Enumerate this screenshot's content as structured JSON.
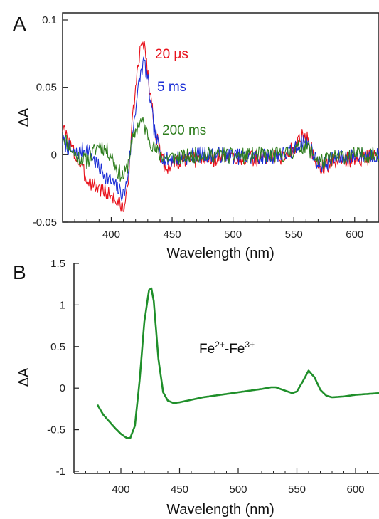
{
  "colors": {
    "red": "#e8101a",
    "blue": "#1c2fd6",
    "green_dark": "#2e7d1e",
    "green_b": "#1f8f2a",
    "axis": "#222222"
  },
  "panel_a": {
    "letter": "A"
  },
  "panel_b": {
    "letter": "B"
  },
  "chart_data": [
    {
      "type": "line",
      "xlabel": "Wavelength (nm)",
      "ylabel": "ΔA",
      "xlim": [
        360,
        620
      ],
      "ylim": [
        -0.05,
        0.1
      ],
      "xticks": [
        {
          "v": 400,
          "t": "400"
        },
        {
          "v": 450,
          "t": "450"
        },
        {
          "v": 500,
          "t": "500"
        },
        {
          "v": 550,
          "t": "550"
        },
        {
          "v": 600,
          "t": "600"
        }
      ],
      "yticks": [
        {
          "v": 0.1,
          "t": "0.1"
        },
        {
          "v": 0.05,
          "t": "0.05"
        },
        {
          "v": 0,
          "t": "0"
        },
        {
          "v": -0.05,
          "t": "-0.05"
        }
      ],
      "series": [
        {
          "name": "20 μs",
          "color": "#e8101a",
          "noise": 0.006,
          "seed": 3,
          "x": [
            360,
            370,
            380,
            390,
            400,
            405,
            410,
            413,
            416,
            420,
            424,
            427,
            430,
            435,
            440,
            445,
            450,
            460,
            470,
            480,
            490,
            500,
            510,
            520,
            530,
            540,
            548,
            554,
            558,
            562,
            566,
            570,
            575,
            580,
            590,
            600,
            610,
            620
          ],
          "y": [
            0.02,
            0.0,
            -0.018,
            -0.025,
            -0.03,
            -0.035,
            -0.04,
            -0.03,
            0.01,
            0.05,
            0.078,
            0.085,
            0.06,
            0.025,
            0.0,
            -0.01,
            -0.007,
            -0.004,
            -0.004,
            -0.004,
            -0.002,
            -0.002,
            -0.003,
            -0.003,
            -0.002,
            -0.002,
            0.003,
            0.01,
            0.015,
            0.01,
            0.0,
            -0.008,
            -0.01,
            -0.006,
            -0.004,
            -0.003,
            -0.002,
            -0.002
          ]
        },
        {
          "name": "5 ms",
          "color": "#1c2fd6",
          "noise": 0.006,
          "seed": 7,
          "x": [
            360,
            370,
            380,
            390,
            400,
            405,
            410,
            413,
            416,
            420,
            424,
            427,
            430,
            435,
            440,
            445,
            450,
            460,
            470,
            480,
            490,
            500,
            510,
            520,
            530,
            540,
            548,
            554,
            558,
            562,
            566,
            570,
            575,
            580,
            590,
            600,
            610,
            620
          ],
          "y": [
            0.01,
            0.0,
            0.005,
            -0.01,
            -0.02,
            -0.025,
            -0.03,
            -0.02,
            0.005,
            0.035,
            0.06,
            0.07,
            0.055,
            0.02,
            0.002,
            -0.004,
            -0.003,
            -0.002,
            0.0,
            0.0,
            0.0,
            -0.001,
            -0.002,
            -0.002,
            -0.001,
            0.0,
            0.002,
            0.007,
            0.011,
            0.008,
            0.0,
            -0.006,
            -0.008,
            -0.004,
            -0.002,
            -0.001,
            0.0,
            0.0
          ]
        },
        {
          "name": "200 ms",
          "color": "#2e7d1e",
          "noise": 0.006,
          "seed": 11,
          "x": [
            360,
            370,
            380,
            390,
            400,
            405,
            410,
            413,
            416,
            420,
            424,
            427,
            430,
            435,
            440,
            445,
            450,
            460,
            470,
            480,
            490,
            500,
            510,
            520,
            530,
            540,
            548,
            554,
            558,
            562,
            566,
            570,
            575,
            580,
            590,
            600,
            610,
            620
          ],
          "y": [
            0.015,
            0.0,
            -0.005,
            0.008,
            0.0,
            -0.012,
            -0.016,
            -0.01,
            0.005,
            0.018,
            0.025,
            0.022,
            0.015,
            0.005,
            0.0,
            -0.002,
            -0.002,
            -0.002,
            0.0,
            0.0,
            0.0,
            -0.001,
            -0.001,
            0.0,
            0.0,
            0.0,
            0.002,
            0.005,
            0.007,
            0.005,
            0.0,
            -0.004,
            -0.005,
            -0.003,
            -0.001,
            0.0,
            0.0,
            0.0
          ]
        }
      ]
    },
    {
      "type": "line",
      "xlabel": "Wavelength (nm)",
      "ylabel": "ΔA",
      "xlim": [
        360,
        620
      ],
      "ylim": [
        -1,
        1.5
      ],
      "xticks": [
        {
          "v": 400,
          "t": "400"
        },
        {
          "v": 450,
          "t": "450"
        },
        {
          "v": 500,
          "t": "500"
        },
        {
          "v": 550,
          "t": "550"
        },
        {
          "v": 600,
          "t": "600"
        }
      ],
      "yticks": [
        {
          "v": 1.5,
          "t": "1.5"
        },
        {
          "v": 1,
          "t": "1"
        },
        {
          "v": 0.5,
          "t": "0.5"
        },
        {
          "v": 0,
          "t": "0"
        },
        {
          "v": -0.5,
          "t": "-0.5"
        },
        {
          "v": -1,
          "t": "-1"
        }
      ],
      "annotation": {
        "base1": "Fe",
        "sup1": "2+",
        "dash": "-",
        "base2": "Fe",
        "sup2": "3+"
      },
      "series": [
        {
          "color": "#1f8f2a",
          "x": [
            380,
            385,
            390,
            395,
            400,
            405,
            408,
            412,
            416,
            420,
            424,
            426,
            428,
            432,
            436,
            440,
            445,
            450,
            460,
            470,
            480,
            490,
            500,
            510,
            520,
            528,
            532,
            540,
            546,
            550,
            555,
            560,
            565,
            570,
            575,
            580,
            590,
            600,
            610,
            620
          ],
          "y": [
            -0.2,
            -0.32,
            -0.4,
            -0.48,
            -0.55,
            -0.6,
            -0.6,
            -0.45,
            0.1,
            0.8,
            1.18,
            1.2,
            1.05,
            0.35,
            -0.05,
            -0.15,
            -0.18,
            -0.17,
            -0.14,
            -0.11,
            -0.09,
            -0.07,
            -0.05,
            -0.03,
            -0.01,
            0.01,
            0.01,
            -0.03,
            -0.06,
            -0.04,
            0.08,
            0.21,
            0.13,
            -0.02,
            -0.09,
            -0.11,
            -0.1,
            -0.08,
            -0.07,
            -0.06
          ]
        }
      ]
    }
  ]
}
